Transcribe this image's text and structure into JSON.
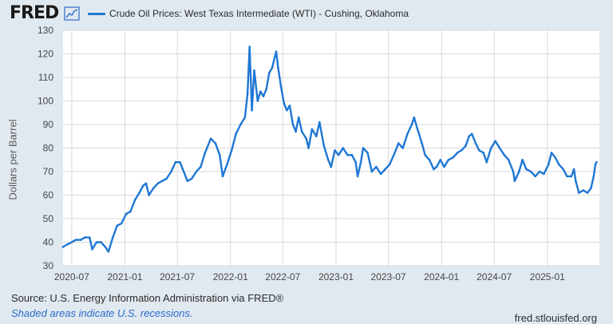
{
  "header": {
    "logo_text": "FRED",
    "legend_label": "Crude Oil Prices: West Texas Intermediate (WTI) - Cushing, Oklahoma",
    "series_color": "#1f77d4"
  },
  "footer": {
    "source": "Source: U.S. Energy Information Administration via FRED®",
    "note": "Shaded areas indicate U.S. recessions.",
    "site": "fred.stlouisfed.org"
  },
  "chart_data": {
    "type": "line",
    "title": "Crude Oil Prices: West Texas Intermediate (WTI) - Cushing, Oklahoma",
    "xlabel": "",
    "ylabel": "Dollars per Barrel",
    "ylim": [
      30,
      130
    ],
    "yticks": [
      30,
      40,
      50,
      60,
      70,
      80,
      90,
      100,
      110,
      120,
      130
    ],
    "xticks": [
      "2020-07",
      "2021-01",
      "2021-07",
      "2022-01",
      "2022-07",
      "2023-01",
      "2023-07",
      "2024-01",
      "2024-07",
      "2025-01"
    ],
    "xrange": [
      "2020-06-01",
      "2025-06-30"
    ],
    "grid": true,
    "series": [
      {
        "name": "Crude Oil Prices: West Texas Intermediate (WTI) - Cushing, Oklahoma",
        "x": [
          "2020-06-01",
          "2020-06-15",
          "2020-07-01",
          "2020-07-15",
          "2020-08-01",
          "2020-08-15",
          "2020-09-01",
          "2020-09-10",
          "2020-09-25",
          "2020-10-10",
          "2020-10-25",
          "2020-11-05",
          "2020-11-20",
          "2020-12-05",
          "2020-12-20",
          "2021-01-05",
          "2021-01-20",
          "2021-02-05",
          "2021-02-20",
          "2021-03-05",
          "2021-03-15",
          "2021-03-25",
          "2021-04-10",
          "2021-04-25",
          "2021-05-10",
          "2021-05-25",
          "2021-06-10",
          "2021-06-25",
          "2021-07-10",
          "2021-07-20",
          "2021-08-05",
          "2021-08-20",
          "2021-09-05",
          "2021-09-20",
          "2021-10-05",
          "2021-10-25",
          "2021-11-10",
          "2021-11-25",
          "2021-12-05",
          "2021-12-20",
          "2022-01-05",
          "2022-01-20",
          "2022-02-05",
          "2022-02-20",
          "2022-03-01",
          "2022-03-08",
          "2022-03-16",
          "2022-03-24",
          "2022-04-05",
          "2022-04-15",
          "2022-04-25",
          "2022-05-05",
          "2022-05-15",
          "2022-05-25",
          "2022-06-08",
          "2022-06-15",
          "2022-06-25",
          "2022-07-05",
          "2022-07-15",
          "2022-07-25",
          "2022-08-05",
          "2022-08-15",
          "2022-08-25",
          "2022-09-05",
          "2022-09-20",
          "2022-09-28",
          "2022-10-10",
          "2022-10-25",
          "2022-11-05",
          "2022-11-20",
          "2022-12-05",
          "2022-12-15",
          "2022-12-28",
          "2023-01-10",
          "2023-01-25",
          "2023-02-10",
          "2023-02-25",
          "2023-03-10",
          "2023-03-17",
          "2023-03-28",
          "2023-04-05",
          "2023-04-20",
          "2023-05-05",
          "2023-05-20",
          "2023-06-05",
          "2023-06-20",
          "2023-07-05",
          "2023-07-20",
          "2023-08-05",
          "2023-08-20",
          "2023-09-05",
          "2023-09-20",
          "2023-09-28",
          "2023-10-10",
          "2023-10-25",
          "2023-11-05",
          "2023-11-20",
          "2023-12-05",
          "2023-12-15",
          "2023-12-28",
          "2024-01-10",
          "2024-01-25",
          "2024-02-10",
          "2024-02-25",
          "2024-03-10",
          "2024-03-25",
          "2024-04-05",
          "2024-04-15",
          "2024-04-28",
          "2024-05-10",
          "2024-05-25",
          "2024-06-05",
          "2024-06-20",
          "2024-07-05",
          "2024-07-20",
          "2024-08-05",
          "2024-08-20",
          "2024-09-05",
          "2024-09-10",
          "2024-09-25",
          "2024-10-07",
          "2024-10-20",
          "2024-11-05",
          "2024-11-20",
          "2024-12-05",
          "2024-12-20",
          "2025-01-05",
          "2025-01-15",
          "2025-01-28",
          "2025-02-10",
          "2025-02-25",
          "2025-03-10",
          "2025-03-25",
          "2025-04-03",
          "2025-04-09",
          "2025-04-20",
          "2025-05-05",
          "2025-05-20",
          "2025-06-01",
          "2025-06-10",
          "2025-06-16",
          "2025-06-20"
        ],
        "values": [
          38,
          39,
          40,
          41,
          41,
          42,
          42,
          37,
          40,
          40,
          38,
          36,
          42,
          47,
          48,
          52,
          53,
          58,
          61,
          64,
          65,
          60,
          63,
          65,
          66,
          67,
          70,
          74,
          74,
          71,
          66,
          67,
          70,
          72,
          78,
          84,
          82,
          77,
          68,
          73,
          79,
          86,
          90,
          93,
          103,
          123,
          96,
          113,
          100,
          104,
          102,
          105,
          112,
          114,
          121,
          114,
          106,
          99,
          96,
          98,
          90,
          87,
          93,
          87,
          84,
          80,
          88,
          85,
          91,
          81,
          75,
          72,
          79,
          77,
          80,
          77,
          77,
          74,
          68,
          74,
          80,
          78,
          70,
          72,
          69,
          71,
          73,
          77,
          82,
          80,
          86,
          90,
          93,
          88,
          82,
          77,
          75,
          71,
          72,
          75,
          72,
          75,
          76,
          78,
          79,
          81,
          85,
          86,
          82,
          79,
          78,
          74,
          80,
          83,
          80,
          77,
          75,
          70,
          66,
          70,
          75,
          71,
          70,
          68,
          70,
          69,
          73,
          78,
          76,
          73,
          71,
          68,
          68,
          71,
          66,
          61,
          62,
          61,
          63,
          68,
          73,
          74
        ]
      }
    ]
  }
}
